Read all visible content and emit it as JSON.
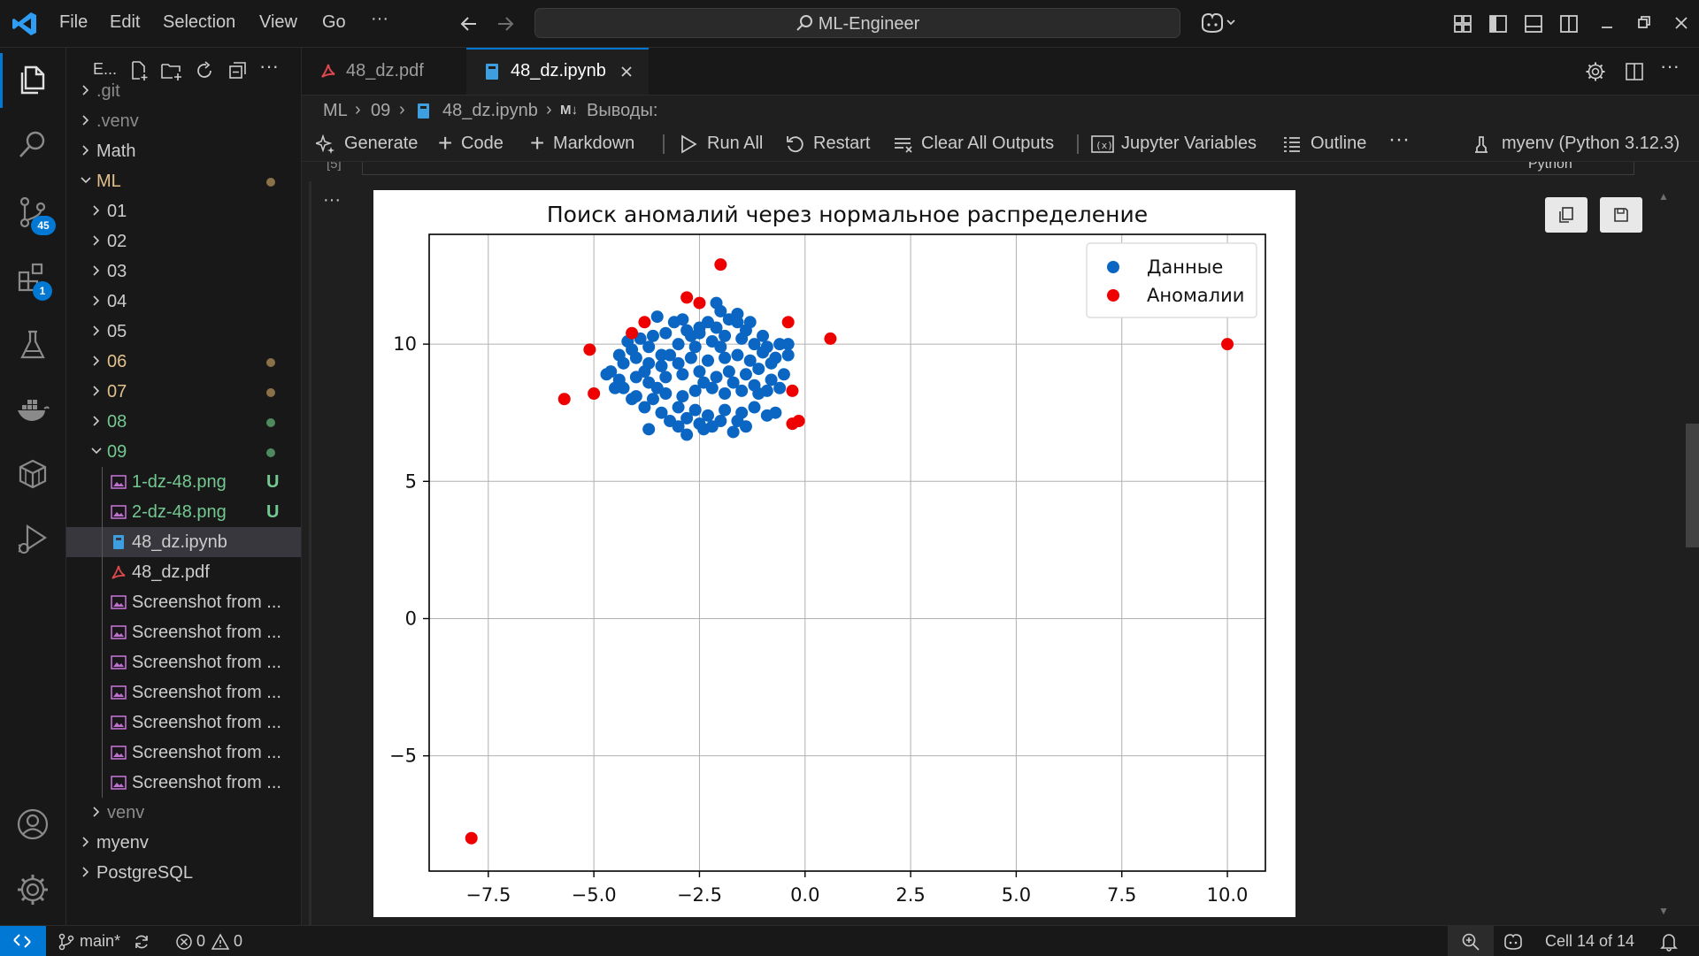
{
  "menu": [
    "File",
    "Edit",
    "Selection",
    "View",
    "Go"
  ],
  "command_center": "ML-Engineer",
  "activity": {
    "scm_badge": "45",
    "extensions_badge": "1"
  },
  "explorer": {
    "title": "E...",
    "items": [
      {
        "label": ".git",
        "depth": 0,
        "kind": "folder",
        "expanded": false,
        "color": "#8b8b8b"
      },
      {
        "label": ".venv",
        "depth": 0,
        "kind": "folder",
        "expanded": false,
        "color": "#8b8b8b"
      },
      {
        "label": "Math",
        "depth": 0,
        "kind": "folder",
        "expanded": false,
        "color": "#cccccc"
      },
      {
        "label": "ML",
        "depth": 0,
        "kind": "folder",
        "expanded": true,
        "color": "#e2c08d",
        "dot": "#8a7148"
      },
      {
        "label": "01",
        "depth": 1,
        "kind": "folder",
        "expanded": false,
        "color": "#cccccc"
      },
      {
        "label": "02",
        "depth": 1,
        "kind": "folder",
        "expanded": false,
        "color": "#cccccc"
      },
      {
        "label": "03",
        "depth": 1,
        "kind": "folder",
        "expanded": false,
        "color": "#cccccc"
      },
      {
        "label": "04",
        "depth": 1,
        "kind": "folder",
        "expanded": false,
        "color": "#cccccc"
      },
      {
        "label": "05",
        "depth": 1,
        "kind": "folder",
        "expanded": false,
        "color": "#cccccc"
      },
      {
        "label": "06",
        "depth": 1,
        "kind": "folder",
        "expanded": false,
        "color": "#e2c08d",
        "dot": "#8a7148"
      },
      {
        "label": "07",
        "depth": 1,
        "kind": "folder",
        "expanded": false,
        "color": "#e2c08d",
        "dot": "#8a7148"
      },
      {
        "label": "08",
        "depth": 1,
        "kind": "folder",
        "expanded": false,
        "color": "#73c991",
        "dot": "#4f8a5e"
      },
      {
        "label": "09",
        "depth": 1,
        "kind": "folder",
        "expanded": true,
        "color": "#73c991",
        "dot": "#4f8a5e"
      },
      {
        "label": "1-dz-48.png",
        "depth": 2,
        "kind": "image",
        "color": "#73c991",
        "badge": "U"
      },
      {
        "label": "2-dz-48.png",
        "depth": 2,
        "kind": "image",
        "color": "#73c991",
        "badge": "U"
      },
      {
        "label": "48_dz.ipynb",
        "depth": 2,
        "kind": "notebook",
        "color": "#cccccc",
        "selected": true
      },
      {
        "label": "48_dz.pdf",
        "depth": 2,
        "kind": "pdf",
        "color": "#cccccc"
      },
      {
        "label": "Screenshot from ...",
        "depth": 2,
        "kind": "image",
        "color": "#cccccc"
      },
      {
        "label": "Screenshot from ...",
        "depth": 2,
        "kind": "image",
        "color": "#cccccc"
      },
      {
        "label": "Screenshot from ...",
        "depth": 2,
        "kind": "image",
        "color": "#cccccc"
      },
      {
        "label": "Screenshot from ...",
        "depth": 2,
        "kind": "image",
        "color": "#cccccc"
      },
      {
        "label": "Screenshot from ...",
        "depth": 2,
        "kind": "image",
        "color": "#cccccc"
      },
      {
        "label": "Screenshot from ...",
        "depth": 2,
        "kind": "image",
        "color": "#cccccc"
      },
      {
        "label": "Screenshot from ...",
        "depth": 2,
        "kind": "image",
        "color": "#cccccc"
      },
      {
        "label": "venv",
        "depth": 1,
        "kind": "folder",
        "expanded": false,
        "color": "#8b8b8b"
      },
      {
        "label": "myenv",
        "depth": 0,
        "kind": "folder",
        "expanded": false,
        "color": "#cccccc"
      },
      {
        "label": "PostgreSQL",
        "depth": 0,
        "kind": "folder",
        "expanded": false,
        "color": "#cccccc"
      }
    ]
  },
  "tabs": [
    {
      "label": "48_dz.pdf",
      "active": false
    },
    {
      "label": "48_dz.ipynb",
      "active": true
    }
  ],
  "breadcrumb": [
    "ML",
    "09",
    "48_dz.ipynb",
    "Выводы:"
  ],
  "breadcrumb_md": "M↓",
  "toolbar": {
    "generate": "Generate",
    "code": "Code",
    "markdown": "Markdown",
    "run_all": "Run All",
    "restart": "Restart",
    "clear": "Clear All Outputs",
    "variables": "Jupyter Variables",
    "outline": "Outline",
    "kernel": "myenv (Python 3.12.3)"
  },
  "cell": {
    "exec_label": "[5]",
    "language": "Python"
  },
  "chart_data": {
    "type": "scatter",
    "title": "Поиск аномалий через нормальное распределение",
    "xlabel": "",
    "ylabel": "",
    "xlim": [
      -8.9,
      10.9
    ],
    "ylim": [
      -9.2,
      14.0
    ],
    "xticks": [
      -7.5,
      -5.0,
      -2.5,
      0.0,
      2.5,
      5.0,
      7.5,
      10.0
    ],
    "xtick_labels": [
      "−7.5",
      "−5.0",
      "−2.5",
      "0.0",
      "2.5",
      "5.0",
      "7.5",
      "10.0"
    ],
    "yticks": [
      -5,
      0,
      5,
      10
    ],
    "ytick_labels": [
      "−5",
      "0",
      "5",
      "10"
    ],
    "grid": true,
    "legend": "top-right",
    "series": [
      {
        "name": "Данные",
        "color": "#0a66c2",
        "points": [
          [
            -2.5,
            10.6
          ],
          [
            -2.3,
            10.8
          ],
          [
            -2.0,
            11.2
          ],
          [
            -1.8,
            10.9
          ],
          [
            -1.6,
            10.8
          ],
          [
            -2.7,
            10.3
          ],
          [
            -2.9,
            10.9
          ],
          [
            -3.1,
            10.8
          ],
          [
            -3.3,
            10.4
          ],
          [
            -3.6,
            10.3
          ],
          [
            -3.9,
            10.2
          ],
          [
            -4.1,
            9.8
          ],
          [
            -3.7,
            9.9
          ],
          [
            -3.4,
            9.6
          ],
          [
            -3.0,
            10.0
          ],
          [
            -2.6,
            9.9
          ],
          [
            -2.2,
            10.1
          ],
          [
            -1.9,
            10.3
          ],
          [
            -1.5,
            10.2
          ],
          [
            -1.2,
            10.0
          ],
          [
            -0.9,
            9.9
          ],
          [
            -0.6,
            10.0
          ],
          [
            -0.4,
            10.0
          ],
          [
            -0.4,
            9.6
          ],
          [
            -0.7,
            9.5
          ],
          [
            -1.0,
            9.7
          ],
          [
            -1.3,
            9.4
          ],
          [
            -1.6,
            9.6
          ],
          [
            -1.9,
            9.5
          ],
          [
            -2.3,
            9.4
          ],
          [
            -2.7,
            9.5
          ],
          [
            -3.0,
            9.3
          ],
          [
            -3.4,
            9.2
          ],
          [
            -3.7,
            9.3
          ],
          [
            -4.0,
            9.5
          ],
          [
            -4.3,
            9.3
          ],
          [
            -4.6,
            9.0
          ],
          [
            -4.4,
            8.7
          ],
          [
            -4.0,
            8.8
          ],
          [
            -3.7,
            8.6
          ],
          [
            -3.3,
            8.8
          ],
          [
            -2.9,
            8.9
          ],
          [
            -2.5,
            9.0
          ],
          [
            -2.1,
            8.8
          ],
          [
            -1.8,
            9.0
          ],
          [
            -1.4,
            8.9
          ],
          [
            -1.1,
            9.1
          ],
          [
            -0.8,
            8.7
          ],
          [
            -0.5,
            8.9
          ],
          [
            -0.6,
            8.4
          ],
          [
            -0.9,
            8.3
          ],
          [
            -1.2,
            8.5
          ],
          [
            -1.5,
            8.3
          ],
          [
            -1.9,
            8.2
          ],
          [
            -2.2,
            8.4
          ],
          [
            -2.6,
            8.3
          ],
          [
            -2.9,
            8.1
          ],
          [
            -3.3,
            8.2
          ],
          [
            -3.6,
            8.0
          ],
          [
            -4.0,
            8.1
          ],
          [
            -4.3,
            8.4
          ],
          [
            -3.8,
            7.7
          ],
          [
            -3.4,
            7.5
          ],
          [
            -3.0,
            7.7
          ],
          [
            -2.6,
            7.6
          ],
          [
            -2.3,
            7.4
          ],
          [
            -1.9,
            7.6
          ],
          [
            -1.5,
            7.5
          ],
          [
            -1.2,
            7.7
          ],
          [
            -0.9,
            7.4
          ],
          [
            -0.7,
            7.5
          ],
          [
            -1.6,
            7.2
          ],
          [
            -2.0,
            7.2
          ],
          [
            -2.5,
            7.1
          ],
          [
            -2.8,
            7.3
          ],
          [
            -3.2,
            7.2
          ],
          [
            -3.7,
            6.9
          ],
          [
            -2.8,
            6.7
          ],
          [
            -2.4,
            6.9
          ],
          [
            -1.7,
            6.8
          ],
          [
            -2.2,
            7.0
          ],
          [
            -4.5,
            8.4
          ],
          [
            -4.7,
            8.9
          ],
          [
            -4.4,
            9.6
          ],
          [
            -4.2,
            10.1
          ],
          [
            -3.5,
            11.0
          ],
          [
            -2.1,
            11.5
          ],
          [
            -1.6,
            11.1
          ],
          [
            -1.4,
            10.5
          ],
          [
            -1.0,
            10.3
          ],
          [
            -2.8,
            10.5
          ],
          [
            -3.8,
            9.0
          ],
          [
            -3.2,
            9.6
          ],
          [
            -2.4,
            8.6
          ],
          [
            -1.7,
            8.6
          ],
          [
            -1.1,
            8.2
          ],
          [
            -0.8,
            9.3
          ],
          [
            -2.0,
            9.9
          ],
          [
            -2.5,
            10.4
          ],
          [
            -3.5,
            8.4
          ],
          [
            -4.1,
            8.0
          ],
          [
            -3.0,
            7.0
          ],
          [
            -1.4,
            7.0
          ],
          [
            -2.1,
            10.6
          ],
          [
            -1.3,
            10.8
          ]
        ]
      },
      {
        "name": "Аномалии",
        "color": "#ee0000",
        "points": [
          [
            -2.0,
            12.9
          ],
          [
            -2.8,
            11.7
          ],
          [
            -2.5,
            11.5
          ],
          [
            -3.8,
            10.8
          ],
          [
            -4.1,
            10.4
          ],
          [
            -0.4,
            10.8
          ],
          [
            -5.1,
            9.8
          ],
          [
            0.6,
            10.2
          ],
          [
            -5.0,
            8.2
          ],
          [
            -5.7,
            8.0
          ],
          [
            -0.3,
            8.3
          ],
          [
            -0.3,
            7.1
          ],
          [
            -0.15,
            7.2
          ],
          [
            10.0,
            10.0
          ],
          [
            -7.9,
            -8.0
          ]
        ]
      }
    ]
  },
  "status": {
    "branch": "main*",
    "errors": "0",
    "warnings": "0",
    "cell": "Cell 14 of 14"
  }
}
